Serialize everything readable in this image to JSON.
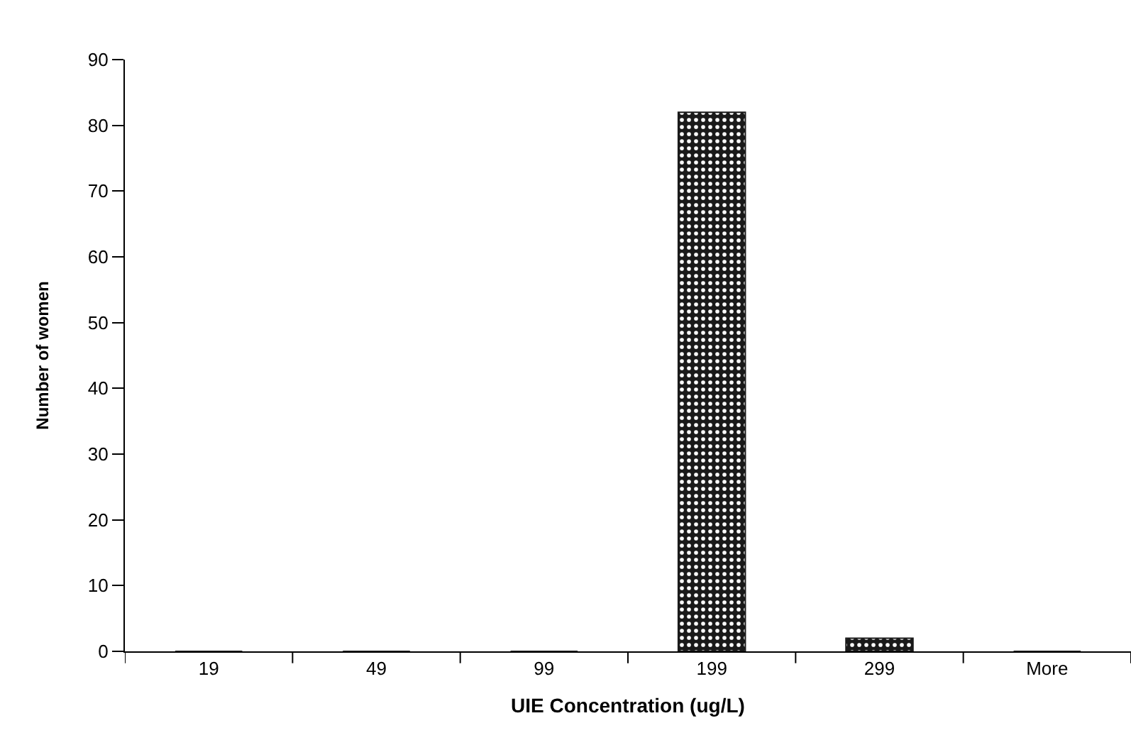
{
  "chart_data": {
    "type": "bar",
    "xlabel": "UIE Concentration (ug/L)",
    "ylabel": "Number of women",
    "categories": [
      "19",
      "49",
      "99",
      "199",
      "299",
      "More"
    ],
    "values": [
      0,
      0,
      0,
      82,
      2,
      0
    ],
    "color": "#1a1a1a",
    "ylim": [
      0,
      90
    ],
    "yticks": [
      0,
      10,
      20,
      30,
      40,
      50,
      60,
      70,
      80,
      90
    ],
    "grid": false
  }
}
